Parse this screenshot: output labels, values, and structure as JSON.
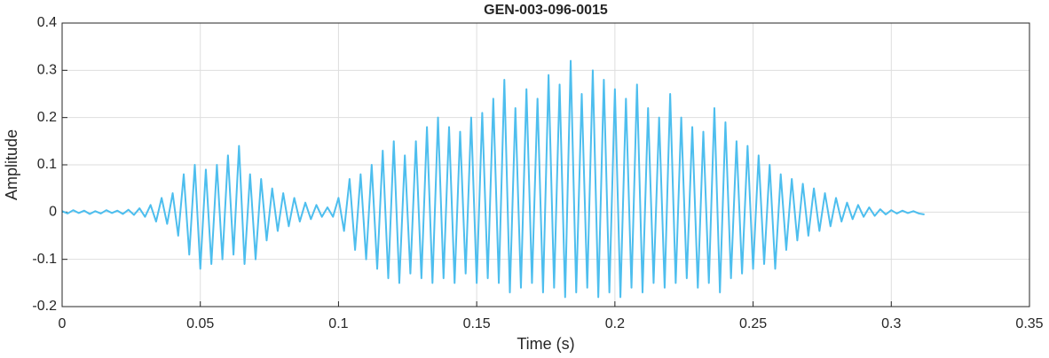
{
  "chart_data": {
    "type": "line",
    "title": "GEN-003-096-0015",
    "x_label": "Time (s)",
    "y_label": "Amplitude",
    "color": "#4dbeee",
    "grid": true,
    "xlim": [
      0,
      0.35
    ],
    "xticks": [
      0,
      0.05,
      0.1,
      0.15,
      0.2,
      0.25,
      0.3,
      0.35
    ],
    "ylim": [
      -0.2,
      0.4
    ],
    "yticks": [
      -0.2,
      -0.1,
      0,
      0.1,
      0.2,
      0.3,
      0.4
    ],
    "x": [
      0,
      0.002,
      0.004,
      0.006,
      0.008,
      0.01,
      0.012,
      0.014,
      0.016,
      0.018,
      0.02,
      0.022,
      0.024,
      0.026,
      0.028,
      0.03,
      0.032,
      0.034,
      0.036,
      0.038,
      0.04,
      0.042,
      0.044,
      0.046,
      0.048,
      0.05,
      0.052,
      0.054,
      0.056,
      0.058,
      0.06,
      0.062,
      0.064,
      0.066,
      0.068,
      0.07,
      0.072,
      0.074,
      0.076,
      0.078,
      0.08,
      0.082,
      0.084,
      0.086,
      0.088,
      0.09,
      0.092,
      0.094,
      0.096,
      0.098,
      0.1,
      0.102,
      0.104,
      0.106,
      0.108,
      0.11,
      0.112,
      0.114,
      0.116,
      0.118,
      0.12,
      0.122,
      0.124,
      0.126,
      0.128,
      0.13,
      0.132,
      0.134,
      0.136,
      0.138,
      0.14,
      0.142,
      0.144,
      0.146,
      0.148,
      0.15,
      0.152,
      0.154,
      0.156,
      0.158,
      0.16,
      0.162,
      0.164,
      0.166,
      0.168,
      0.17,
      0.172,
      0.174,
      0.176,
      0.178,
      0.18,
      0.182,
      0.184,
      0.186,
      0.188,
      0.19,
      0.192,
      0.194,
      0.196,
      0.198,
      0.2,
      0.202,
      0.204,
      0.206,
      0.208,
      0.21,
      0.212,
      0.214,
      0.216,
      0.218,
      0.22,
      0.222,
      0.224,
      0.226,
      0.228,
      0.23,
      0.232,
      0.234,
      0.236,
      0.238,
      0.24,
      0.242,
      0.244,
      0.246,
      0.248,
      0.25,
      0.252,
      0.254,
      0.256,
      0.258,
      0.26,
      0.262,
      0.264,
      0.266,
      0.268,
      0.27,
      0.272,
      0.274,
      0.276,
      0.278,
      0.28,
      0.282,
      0.284,
      0.286,
      0.288,
      0.29,
      0.292,
      0.294,
      0.296,
      0.298,
      0.3,
      0.302,
      0.304,
      0.306,
      0.308,
      0.31,
      0.312
    ],
    "values": [
      0.002,
      -0.003,
      0.004,
      -0.002,
      0.003,
      -0.004,
      0.002,
      -0.003,
      0.004,
      -0.002,
      0.003,
      -0.004,
      0.005,
      -0.006,
      0.008,
      -0.01,
      0.015,
      -0.02,
      0.03,
      -0.025,
      0.04,
      -0.05,
      0.08,
      -0.09,
      0.1,
      -0.12,
      0.09,
      -0.11,
      0.1,
      -0.1,
      0.12,
      -0.09,
      0.14,
      -0.11,
      0.08,
      -0.1,
      0.07,
      -0.06,
      0.05,
      -0.04,
      0.04,
      -0.03,
      0.03,
      -0.02,
      0.02,
      -0.015,
      0.015,
      -0.01,
      0.01,
      -0.01,
      0.03,
      -0.04,
      0.07,
      -0.08,
      0.08,
      -0.1,
      0.1,
      -0.12,
      0.13,
      -0.14,
      0.15,
      -0.15,
      0.12,
      -0.13,
      0.15,
      -0.14,
      0.18,
      -0.15,
      0.2,
      -0.14,
      0.18,
      -0.15,
      0.17,
      -0.13,
      0.2,
      -0.15,
      0.21,
      -0.14,
      0.24,
      -0.15,
      0.28,
      -0.17,
      0.22,
      -0.16,
      0.26,
      -0.15,
      0.24,
      -0.17,
      0.29,
      -0.16,
      0.27,
      -0.18,
      0.32,
      -0.17,
      0.25,
      -0.16,
      0.3,
      -0.18,
      0.28,
      -0.17,
      0.26,
      -0.18,
      0.24,
      -0.16,
      0.27,
      -0.17,
      0.22,
      -0.15,
      0.2,
      -0.16,
      0.25,
      -0.15,
      0.2,
      -0.14,
      0.18,
      -0.16,
      0.17,
      -0.15,
      0.22,
      -0.17,
      0.19,
      -0.14,
      0.15,
      -0.13,
      0.14,
      -0.12,
      0.12,
      -0.11,
      0.1,
      -0.12,
      0.08,
      -0.08,
      0.07,
      -0.06,
      0.06,
      -0.05,
      0.05,
      -0.04,
      0.04,
      -0.03,
      0.03,
      -0.02,
      0.02,
      -0.015,
      0.015,
      -0.01,
      0.01,
      -0.008,
      0.006,
      -0.005,
      0.004,
      -0.003,
      0.003,
      -0.002,
      0.002,
      -0.003,
      -0.005
    ]
  }
}
